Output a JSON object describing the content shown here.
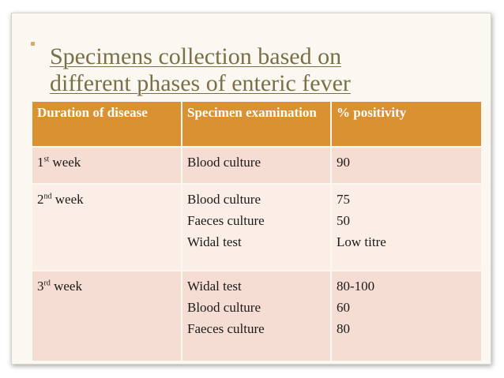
{
  "title": {
    "line1": "Specimens collection based on",
    "line2": "different phases of enteric fever"
  },
  "table": {
    "headers": [
      "Duration of disease",
      "Specimen examination",
      "% positivity"
    ],
    "rows": [
      {
        "week_num": "1",
        "week_sup": "st",
        "week_word": " week",
        "specimens": [
          "Blood culture"
        ],
        "positivity": [
          "90"
        ]
      },
      {
        "week_num": "2",
        "week_sup": "nd",
        "week_word": " week",
        "specimens": [
          "Blood culture",
          "Faeces culture",
          "Widal test"
        ],
        "positivity": [
          "75",
          "50",
          "Low titre"
        ]
      },
      {
        "week_num": "3",
        "week_sup": "rd",
        "week_word": " week",
        "specimens": [
          "Widal test",
          "Blood culture",
          "Faeces culture"
        ],
        "positivity": [
          "80-100",
          "60",
          "80"
        ]
      }
    ]
  },
  "colors": {
    "header_bg": "#d99132",
    "row_dark": "#f6ddd3",
    "row_light": "#fbeee7",
    "title_color": "#7a7048"
  }
}
